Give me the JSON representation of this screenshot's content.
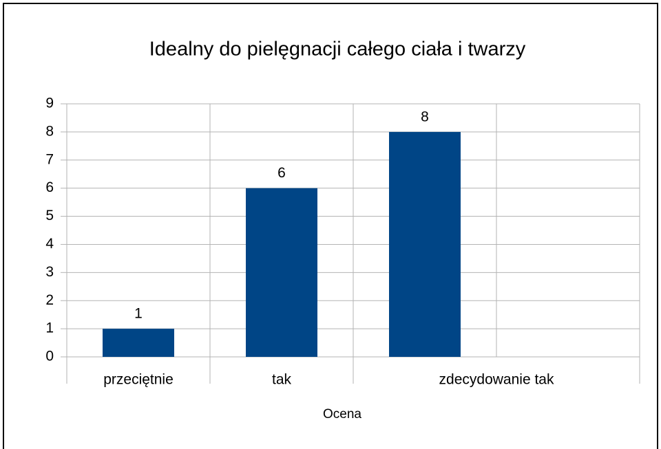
{
  "chart_data": {
    "type": "bar",
    "title": "Idealny do pielęgnacji całego ciała i twarzy",
    "x_label": "Ocena",
    "categories": [
      "przeciętnie",
      "tak",
      "zdecydowanie tak",
      null
    ],
    "values": [
      1,
      6,
      8,
      null
    ],
    "color": "#004586",
    "ylim": [
      0,
      9
    ],
    "yticks": [
      0,
      1,
      2,
      3,
      4,
      5,
      6,
      7,
      8,
      9
    ],
    "grid": true
  }
}
